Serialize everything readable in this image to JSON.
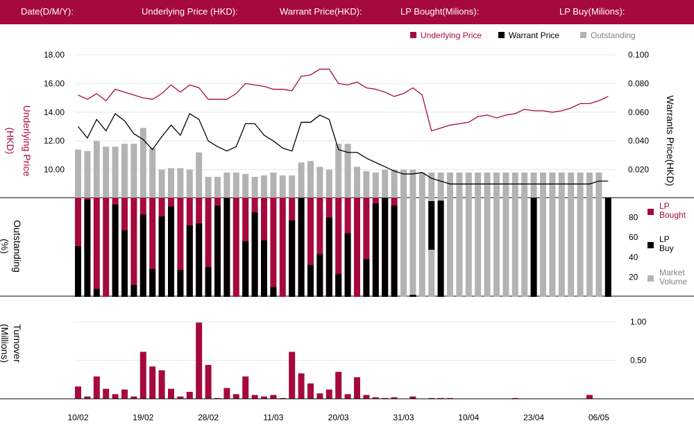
{
  "header": {
    "date_label": "Date(D/M/Y):",
    "underlying_label": "Underlying Price (HKD):",
    "warrant_label": "Warrant  Price(HKD):",
    "lp_bought_label": "LP Bought(Milions):",
    "lp_buy_label": "LP Buy(Milions):"
  },
  "colors": {
    "crimson": "#a6093d",
    "black": "#000000",
    "gray": "#b3b3b3",
    "header_bg": "#a6093d"
  },
  "legend_top": [
    "Underlying Price",
    "Warrant  Price",
    "Outstanding"
  ],
  "legend_mid": [
    {
      "line1": "LP",
      "line2": "Bought"
    },
    {
      "line1": "LP",
      "line2": "Buy"
    },
    {
      "line1": "Market",
      "line2": "Volume"
    }
  ],
  "chart_data": {
    "type": "combo",
    "x_ticks": [
      "10/02",
      "19/02",
      "28/02",
      "11/03",
      "20/03",
      "31/03",
      "10/04",
      "23/04",
      "06/05"
    ],
    "x_tick_positions": [
      0,
      7,
      14,
      21,
      28,
      35,
      42,
      49,
      56
    ],
    "top_panel": {
      "left_axis": {
        "label_lines": [
          "Underlying Price",
          "(HKD)"
        ],
        "ticks": [
          "18.00",
          "16.00",
          "14.00",
          "12.00",
          "10.00"
        ],
        "range": [
          8.0,
          18.0
        ]
      },
      "right_axis": {
        "label": "Warrants  Price(HKD)",
        "ticks": [
          "0.100",
          "0.080",
          "0.060",
          "0.040",
          "0.020"
        ],
        "range": [
          0.0,
          0.1
        ]
      },
      "underlying_price": [
        15.2,
        14.9,
        15.3,
        14.8,
        15.6,
        15.4,
        15.2,
        15.0,
        14.9,
        15.3,
        15.9,
        15.4,
        15.9,
        15.7,
        14.9,
        14.9,
        14.9,
        15.3,
        16.0,
        15.9,
        15.8,
        15.6,
        15.6,
        15.5,
        16.5,
        16.6,
        17.0,
        17.0,
        16.0,
        15.9,
        16.1,
        15.7,
        15.6,
        15.4,
        15.1,
        15.3,
        15.7,
        15.2,
        12.7,
        12.9,
        13.1,
        13.2,
        13.3,
        13.7,
        13.8,
        13.6,
        13.8,
        13.9,
        14.2,
        14.1,
        14.1,
        14.0,
        14.1,
        14.3,
        14.6,
        14.6,
        14.8,
        15.1
      ],
      "warrant_price": [
        0.05,
        0.042,
        0.055,
        0.047,
        0.059,
        0.054,
        0.045,
        0.041,
        0.034,
        0.043,
        0.051,
        0.044,
        0.059,
        0.055,
        0.04,
        0.036,
        0.033,
        0.036,
        0.052,
        0.052,
        0.044,
        0.04,
        0.035,
        0.033,
        0.053,
        0.053,
        0.058,
        0.055,
        0.034,
        0.032,
        0.032,
        0.028,
        0.025,
        0.022,
        0.019,
        0.017,
        0.017,
        0.018,
        0.014,
        0.012,
        0.01,
        0.01,
        0.01,
        0.01,
        0.01,
        0.01,
        0.01,
        0.01,
        0.01,
        0.01,
        0.01,
        0.01,
        0.01,
        0.01,
        0.01,
        0.01,
        0.012,
        0.012
      ],
      "outstanding": [
        0.034,
        0.033,
        0.04,
        0.036,
        0.036,
        0.038,
        0.038,
        0.049,
        0.035,
        0.02,
        0.021,
        0.021,
        0.02,
        0.032,
        0.015,
        0.015,
        0.018,
        0.018,
        0.017,
        0.015,
        0.016,
        0.018,
        0.016,
        0.016,
        0.025,
        0.026,
        0.022,
        0.02,
        0.038,
        0.038,
        0.022,
        0.019,
        0.018,
        0.02,
        0.02,
        0.02,
        0.02,
        0.018,
        0.018,
        0.018,
        0.018,
        0.018,
        0.018,
        0.018,
        0.018,
        0.018,
        0.018,
        0.018,
        0.018,
        0.018,
        0.018,
        0.018,
        0.018,
        0.018,
        0.018,
        0.018,
        0.018,
        0.0
      ]
    },
    "middle_panel": {
      "left_axis": {
        "label_lines": [
          "Outstanding",
          "(%)"
        ]
      },
      "right_axis": {
        "ticks": [
          "80",
          "60",
          "40",
          "20"
        ],
        "range": [
          0,
          100
        ]
      },
      "lp_bought": [
        100,
        55,
        92,
        100,
        100,
        100,
        90,
        100,
        100,
        100,
        95,
        100,
        100,
        100,
        100,
        100,
        100,
        100,
        100,
        95,
        100,
        100,
        100,
        100,
        100,
        100,
        100,
        100,
        100,
        100,
        100,
        100,
        100,
        100,
        98,
        0,
        0,
        0,
        0,
        0,
        0,
        0,
        0,
        0,
        0,
        0,
        0,
        0,
        0,
        0,
        0,
        0,
        0,
        0,
        0,
        0,
        0,
        0
      ],
      "lp_buy": [
        51,
        98,
        8,
        0,
        93,
        67,
        12,
        83,
        28,
        81,
        91,
        27,
        72,
        74,
        30,
        92,
        100,
        0,
        56,
        85,
        57,
        10,
        0,
        77,
        100,
        32,
        43,
        80,
        23,
        64,
        0,
        38,
        94,
        100,
        92,
        0,
        2,
        0,
        0,
        97,
        0,
        0,
        0,
        0,
        0,
        0,
        0,
        0,
        0,
        0,
        0,
        0,
        0,
        0,
        0,
        0,
        0,
        0
      ],
      "lp_buy_extra": {
        "39": 100,
        "57": 100
      },
      "market_volume": [
        6,
        0,
        0,
        0,
        0,
        0,
        0,
        0,
        0,
        0,
        0,
        0,
        0,
        0,
        0,
        0,
        0,
        0,
        0,
        4,
        0,
        0,
        0,
        0,
        0,
        0,
        0,
        0,
        0,
        0,
        0,
        0,
        0,
        0,
        0,
        100,
        100,
        100,
        100,
        100,
        100,
        100,
        100,
        100,
        100,
        100,
        100,
        100,
        100,
        100,
        100,
        100,
        100,
        100,
        100,
        100,
        100,
        100
      ]
    },
    "bottom_panel": {
      "left_axis": {
        "label_lines": [
          "Turnover",
          "(Millions)"
        ]
      },
      "right_axis": {
        "ticks": [
          "1.00",
          "0.50"
        ],
        "range": [
          0,
          1.0
        ]
      },
      "turnover": [
        0.16,
        0.03,
        0.29,
        0.13,
        0.06,
        0.12,
        0.03,
        0.61,
        0.42,
        0.37,
        0.13,
        0.03,
        0.09,
        0.99,
        0.44,
        0.01,
        0.14,
        0.06,
        0.29,
        0.05,
        0.03,
        0.05,
        0.01,
        0.61,
        0.33,
        0.2,
        0.07,
        0.12,
        0.35,
        0.06,
        0.28,
        0.05,
        0.02,
        0.01,
        0.02,
        0.0,
        0.03,
        0.0,
        0.01,
        0.01,
        0.01,
        0.0,
        0.0,
        0.0,
        0.0,
        0.0,
        0.0,
        0.01,
        0.0,
        0.0,
        0.0,
        0.0,
        0.0,
        0.0,
        0.0,
        0.05,
        0.0,
        0.0
      ]
    }
  }
}
